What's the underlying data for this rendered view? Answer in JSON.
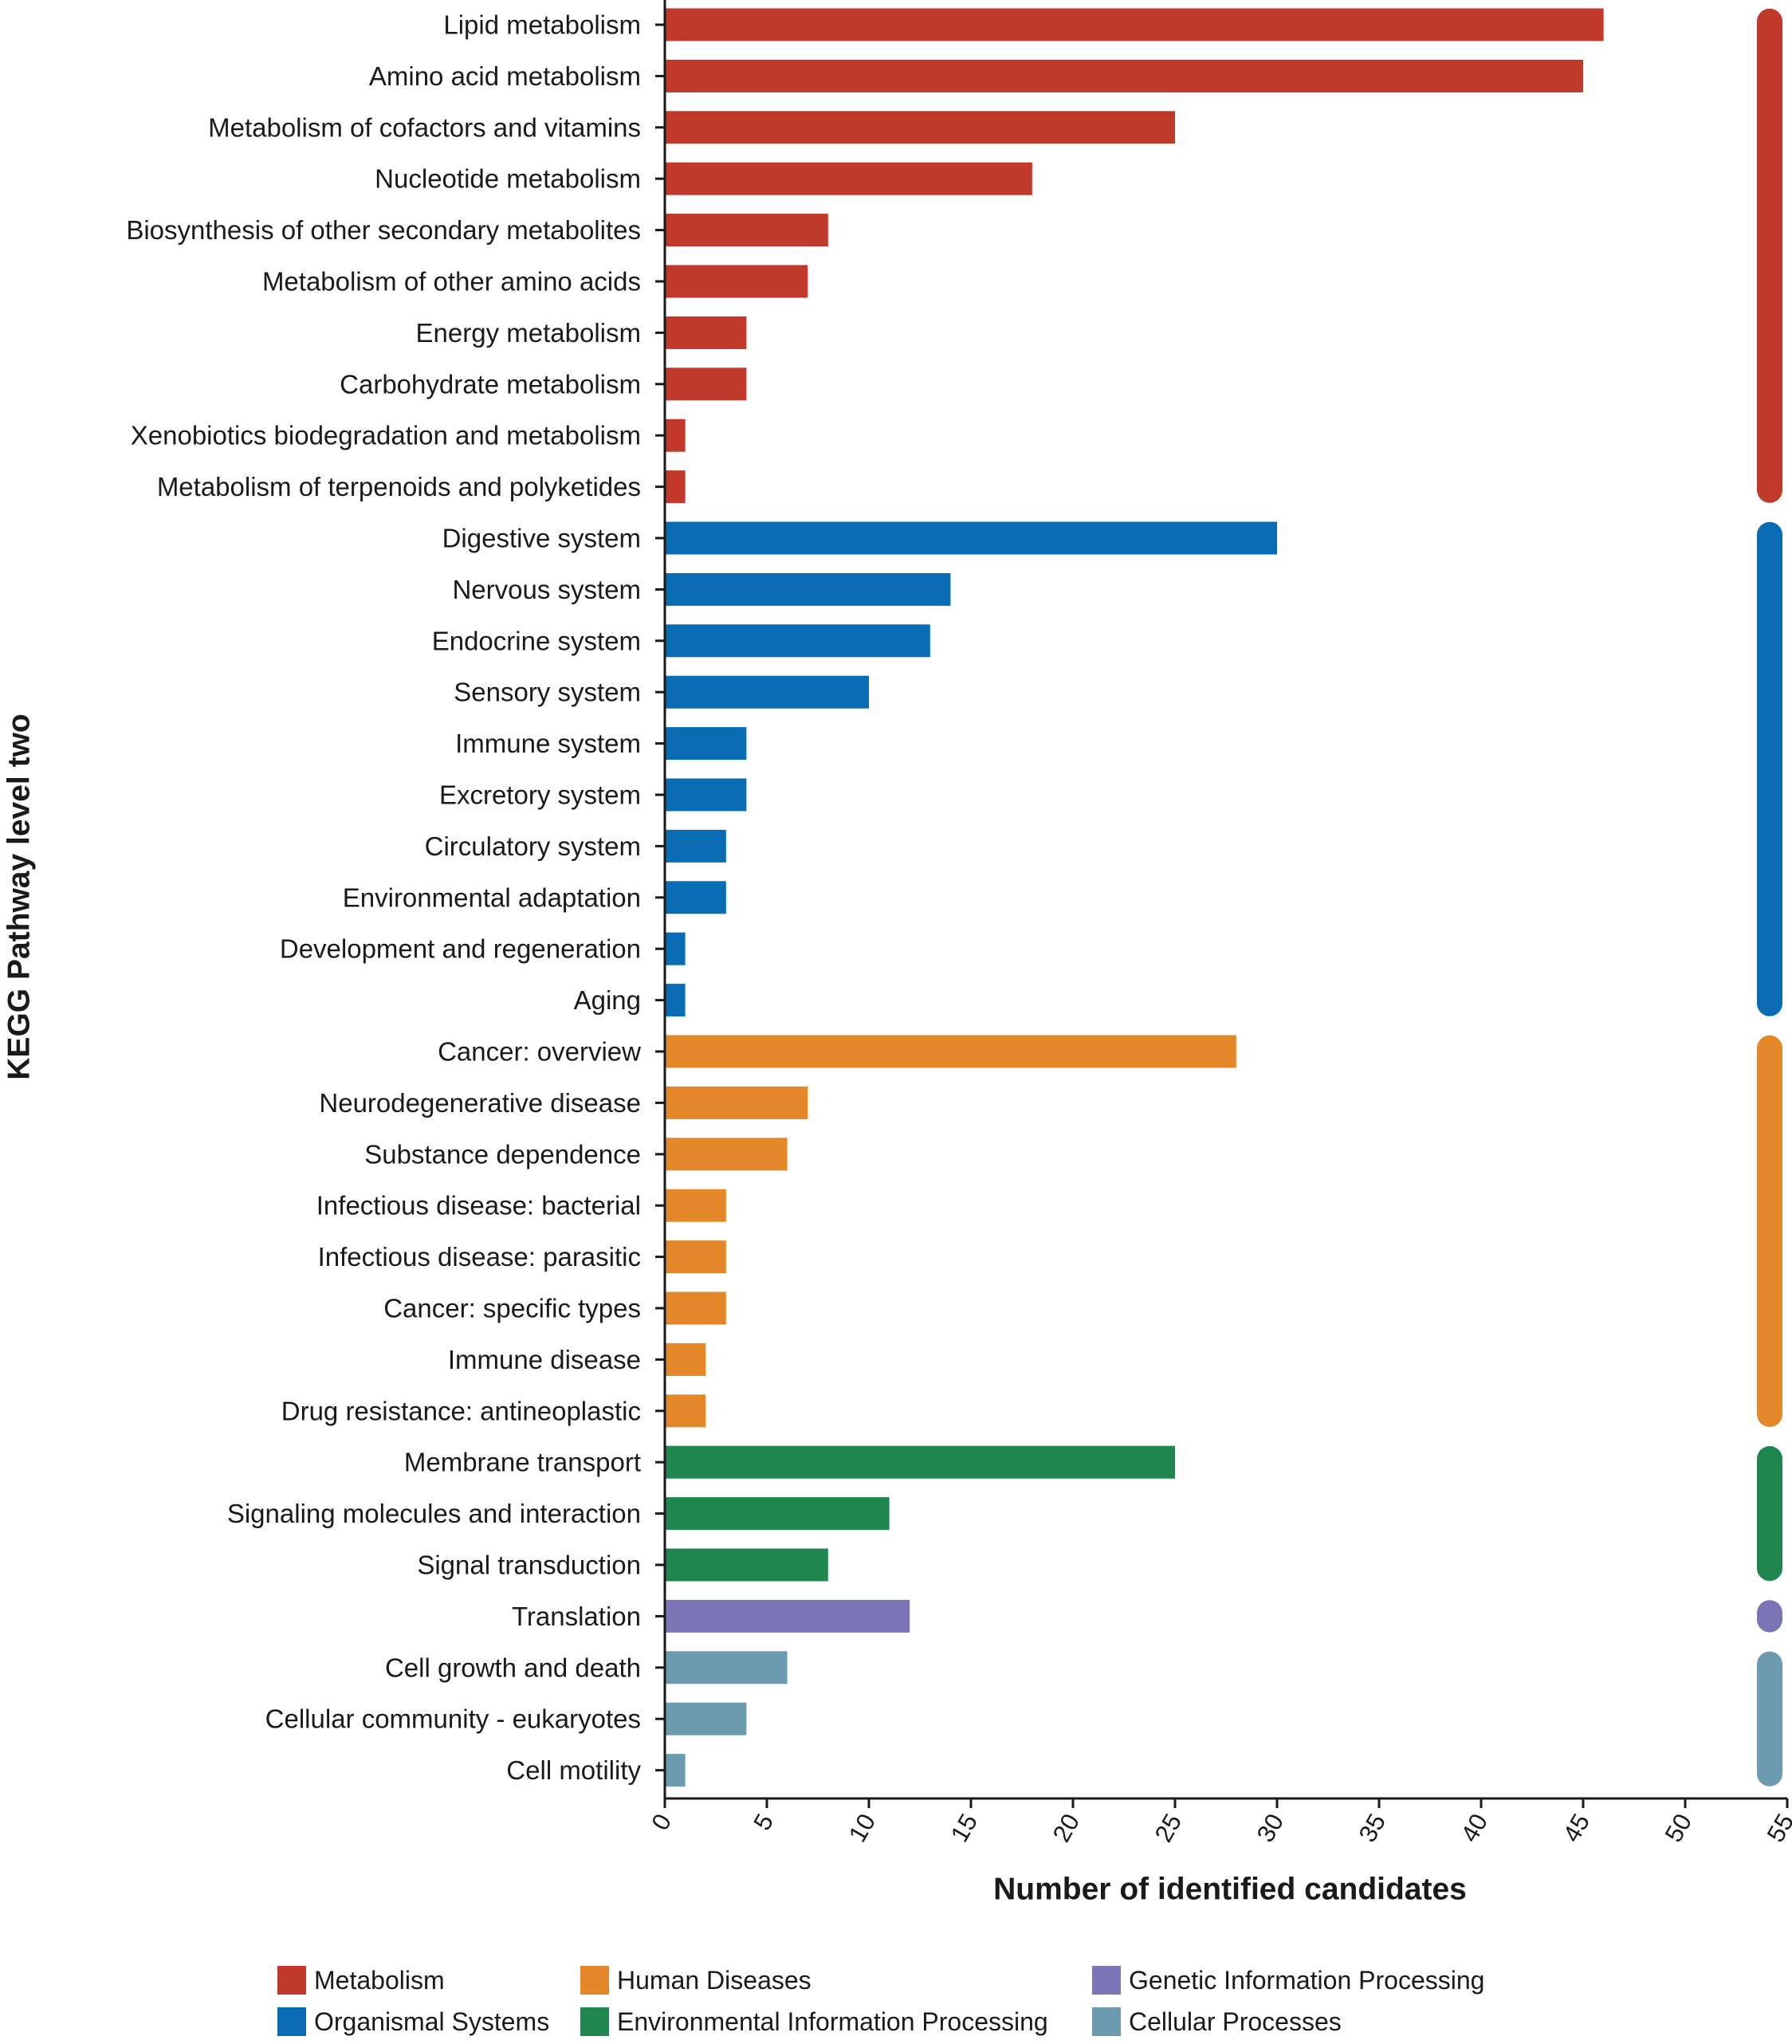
{
  "chart_data": {
    "type": "bar",
    "orientation": "horizontal",
    "xlabel": "Number of identified candidates",
    "ylabel": "KEGG Pathway level two",
    "xlim": [
      0,
      55
    ],
    "xticks": [
      0,
      5,
      10,
      15,
      20,
      25,
      30,
      35,
      40,
      45,
      50,
      55
    ],
    "grid": false,
    "legend_position": "bottom",
    "groups": [
      {
        "name": "Metabolism",
        "color": "#c0392b"
      },
      {
        "name": "Organismal Systems",
        "color": "#0a6db4"
      },
      {
        "name": "Human Diseases",
        "color": "#e3872a"
      },
      {
        "name": "Environmental Information Processing",
        "color": "#1f8650"
      },
      {
        "name": "Genetic Information Processing",
        "color": "#7b74b5"
      },
      {
        "name": "Cellular Processes",
        "color": "#6c9bb0"
      }
    ],
    "legend_order": [
      "Metabolism",
      "Human Diseases",
      "Genetic Information Processing",
      "Organismal Systems",
      "Environmental Information Processing",
      "Cellular Processes"
    ],
    "bars": [
      {
        "label": "Lipid metabolism",
        "value": 46,
        "group": "Metabolism"
      },
      {
        "label": "Amino acid metabolism",
        "value": 45,
        "group": "Metabolism"
      },
      {
        "label": "Metabolism of cofactors and vitamins",
        "value": 25,
        "group": "Metabolism"
      },
      {
        "label": "Nucleotide metabolism",
        "value": 18,
        "group": "Metabolism"
      },
      {
        "label": "Biosynthesis of other secondary metabolites",
        "value": 8,
        "group": "Metabolism"
      },
      {
        "label": "Metabolism of other amino acids",
        "value": 7,
        "group": "Metabolism"
      },
      {
        "label": "Energy metabolism",
        "value": 4,
        "group": "Metabolism"
      },
      {
        "label": "Carbohydrate metabolism",
        "value": 4,
        "group": "Metabolism"
      },
      {
        "label": "Xenobiotics biodegradation and metabolism",
        "value": 1,
        "group": "Metabolism"
      },
      {
        "label": "Metabolism of terpenoids and polyketides",
        "value": 1,
        "group": "Metabolism"
      },
      {
        "label": "Digestive system",
        "value": 30,
        "group": "Organismal Systems"
      },
      {
        "label": "Nervous system",
        "value": 14,
        "group": "Organismal Systems"
      },
      {
        "label": "Endocrine system",
        "value": 13,
        "group": "Organismal Systems"
      },
      {
        "label": "Sensory system",
        "value": 10,
        "group": "Organismal Systems"
      },
      {
        "label": "Immune system",
        "value": 4,
        "group": "Organismal Systems"
      },
      {
        "label": "Excretory system",
        "value": 4,
        "group": "Organismal Systems"
      },
      {
        "label": "Circulatory system",
        "value": 3,
        "group": "Organismal Systems"
      },
      {
        "label": "Environmental adaptation",
        "value": 3,
        "group": "Organismal Systems"
      },
      {
        "label": "Development and regeneration",
        "value": 1,
        "group": "Organismal Systems"
      },
      {
        "label": "Aging",
        "value": 1,
        "group": "Organismal Systems"
      },
      {
        "label": "Cancer: overview",
        "value": 28,
        "group": "Human Diseases"
      },
      {
        "label": "Neurodegenerative disease",
        "value": 7,
        "group": "Human Diseases"
      },
      {
        "label": "Substance dependence",
        "value": 6,
        "group": "Human Diseases"
      },
      {
        "label": "Infectious disease: bacterial",
        "value": 3,
        "group": "Human Diseases"
      },
      {
        "label": "Infectious disease: parasitic",
        "value": 3,
        "group": "Human Diseases"
      },
      {
        "label": "Cancer: specific types",
        "value": 3,
        "group": "Human Diseases"
      },
      {
        "label": "Immune disease",
        "value": 2,
        "group": "Human Diseases"
      },
      {
        "label": "Drug resistance: antineoplastic",
        "value": 2,
        "group": "Human Diseases"
      },
      {
        "label": "Membrane transport",
        "value": 25,
        "group": "Environmental Information Processing"
      },
      {
        "label": "Signaling molecules and interaction",
        "value": 11,
        "group": "Environmental Information Processing"
      },
      {
        "label": "Signal transduction",
        "value": 8,
        "group": "Environmental Information Processing"
      },
      {
        "label": "Translation",
        "value": 12,
        "group": "Genetic Information Processing"
      },
      {
        "label": "Cell growth and death",
        "value": 6,
        "group": "Cellular Processes"
      },
      {
        "label": "Cellular community - eukaryotes",
        "value": 4,
        "group": "Cellular Processes"
      },
      {
        "label": "Cell motility",
        "value": 1,
        "group": "Cellular Processes"
      }
    ]
  }
}
